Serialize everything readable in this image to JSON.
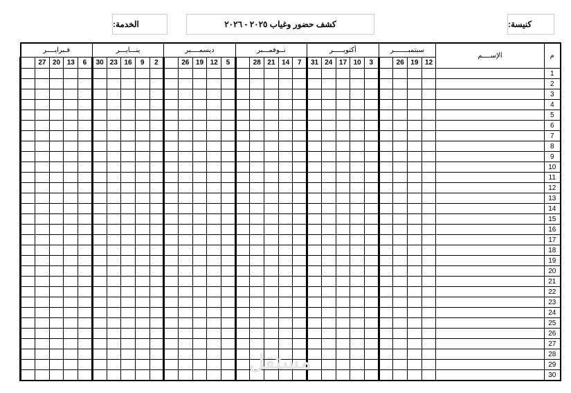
{
  "header": {
    "church_label": "كنيسة:",
    "title": "كشف حضور وغياب ٢٠٢٥ - ٢٠٢٦",
    "service_label": "الخدمة:"
  },
  "table": {
    "number_header": "م",
    "name_header": "الإســــم",
    "months": [
      {
        "label": "سبتمبـــــــر",
        "days": [
          "12",
          "19",
          "26",
          ""
        ]
      },
      {
        "label": "أكتوبـــــر",
        "days": [
          "3",
          "10",
          "17",
          "24",
          "31"
        ]
      },
      {
        "label": "نــوفمـــبر",
        "days": [
          "7",
          "14",
          "21",
          "28",
          ""
        ]
      },
      {
        "label": "ديسمــــبر",
        "days": [
          "5",
          "12",
          "19",
          "26",
          ""
        ]
      },
      {
        "label": "ينـــايـــر",
        "days": [
          "2",
          "9",
          "16",
          "23",
          "30"
        ]
      },
      {
        "label": "فـبرايــــر",
        "days": [
          "6",
          "13",
          "20",
          "27",
          ""
        ]
      }
    ],
    "row_numbers": [
      "1",
      "2",
      "3",
      "4",
      "5",
      "6",
      "7",
      "8",
      "9",
      "10",
      "11",
      "12",
      "13",
      "14",
      "15",
      "16",
      "17",
      "18",
      "19",
      "20",
      "21",
      "22",
      "23",
      "24",
      "25",
      "26",
      "27",
      "28",
      "29",
      "30"
    ]
  },
  "watermark": "مستقل"
}
